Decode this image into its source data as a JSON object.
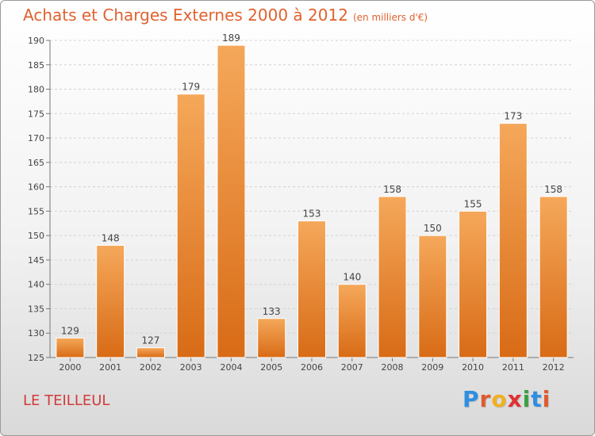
{
  "title": "Achats et Charges Externes 2000 à 2012",
  "subtitle": "(en milliers d'€)",
  "place": "LE TEILLEUL",
  "logo": {
    "text": "Proxiti",
    "letters": [
      "P",
      "r",
      "o",
      "x",
      "i",
      "t",
      "i"
    ],
    "colors": [
      "#2f8ee0",
      "#e05a2f",
      "#f0b020",
      "#e03030",
      "#3aa040",
      "#2f8ee0",
      "#e05a2f"
    ]
  },
  "colors": {
    "bar_top": "#f5a85a",
    "bar_bottom": "#d86b16",
    "title": "#e0622f",
    "place": "#d23a3a"
  },
  "chart_data": {
    "type": "bar",
    "categories": [
      "2000",
      "2001",
      "2002",
      "2003",
      "2004",
      "2005",
      "2006",
      "2007",
      "2008",
      "2009",
      "2010",
      "2011",
      "2012"
    ],
    "values": [
      129,
      148,
      127,
      179,
      189,
      133,
      153,
      140,
      158,
      150,
      155,
      173,
      158
    ],
    "ylim": [
      125,
      190
    ],
    "yticks": [
      125,
      130,
      135,
      140,
      145,
      150,
      155,
      160,
      165,
      170,
      175,
      180,
      185,
      190
    ],
    "grid": true,
    "data_labels": true
  }
}
